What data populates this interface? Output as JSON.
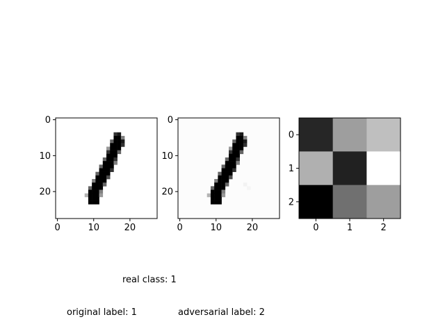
{
  "chart_data": [
    {
      "type": "heatmap",
      "grid": [
        28,
        28
      ],
      "xticks": [
        "0",
        "10",
        "20"
      ],
      "yticks": [
        "0",
        "10",
        "20"
      ],
      "tick_values": [
        0,
        10,
        20
      ],
      "ink_cells": [
        [
          4,
          16,
          0.8
        ],
        [
          4,
          17,
          0.9
        ],
        [
          5,
          16,
          1
        ],
        [
          5,
          17,
          1
        ],
        [
          5,
          18,
          0.5
        ],
        [
          6,
          15,
          0.6
        ],
        [
          6,
          16,
          1
        ],
        [
          6,
          17,
          1
        ],
        [
          6,
          18,
          0.9
        ],
        [
          7,
          15,
          1
        ],
        [
          7,
          16,
          1
        ],
        [
          7,
          17,
          1
        ],
        [
          7,
          18,
          0.8
        ],
        [
          8,
          14,
          0.4
        ],
        [
          8,
          15,
          1
        ],
        [
          8,
          16,
          1
        ],
        [
          8,
          17,
          1
        ],
        [
          9,
          14,
          0.8
        ],
        [
          9,
          15,
          1
        ],
        [
          9,
          16,
          1
        ],
        [
          9,
          17,
          0.6
        ],
        [
          10,
          14,
          1
        ],
        [
          10,
          15,
          1
        ],
        [
          10,
          16,
          1
        ],
        [
          11,
          13,
          0.6
        ],
        [
          11,
          14,
          1
        ],
        [
          11,
          15,
          1
        ],
        [
          11,
          16,
          0.8
        ],
        [
          12,
          13,
          1
        ],
        [
          12,
          14,
          1
        ],
        [
          12,
          15,
          1
        ],
        [
          12,
          16,
          0.5
        ],
        [
          13,
          12,
          0.6
        ],
        [
          13,
          13,
          1
        ],
        [
          13,
          14,
          1
        ],
        [
          13,
          15,
          1
        ],
        [
          14,
          12,
          1
        ],
        [
          14,
          13,
          1
        ],
        [
          14,
          14,
          1
        ],
        [
          14,
          15,
          0.8
        ],
        [
          15,
          11,
          0.6
        ],
        [
          15,
          12,
          1
        ],
        [
          15,
          13,
          1
        ],
        [
          15,
          14,
          1
        ],
        [
          16,
          11,
          1
        ],
        [
          16,
          12,
          1
        ],
        [
          16,
          13,
          1
        ],
        [
          16,
          14,
          0.7
        ],
        [
          17,
          10,
          0.5
        ],
        [
          17,
          11,
          1
        ],
        [
          17,
          12,
          1
        ],
        [
          17,
          13,
          1
        ],
        [
          18,
          10,
          1
        ],
        [
          18,
          11,
          1
        ],
        [
          18,
          12,
          1
        ],
        [
          18,
          13,
          0.6
        ],
        [
          19,
          9,
          0.6
        ],
        [
          19,
          10,
          1
        ],
        [
          19,
          11,
          1
        ],
        [
          19,
          12,
          1
        ],
        [
          20,
          9,
          1
        ],
        [
          20,
          10,
          1
        ],
        [
          20,
          11,
          1
        ],
        [
          20,
          12,
          0.5
        ],
        [
          21,
          8,
          0.3
        ],
        [
          21,
          9,
          1
        ],
        [
          21,
          10,
          1
        ],
        [
          21,
          11,
          1
        ],
        [
          21,
          12,
          0.4
        ],
        [
          22,
          9,
          1
        ],
        [
          22,
          10,
          1
        ],
        [
          22,
          11,
          1
        ],
        [
          23,
          9,
          1
        ],
        [
          23,
          10,
          1
        ],
        [
          23,
          11,
          1
        ]
      ]
    },
    {
      "type": "heatmap",
      "grid": [
        28,
        28
      ],
      "xticks": [
        "0",
        "10",
        "20"
      ],
      "yticks": [
        "0",
        "10",
        "20"
      ],
      "tick_values": [
        0,
        10,
        20
      ],
      "background_level": 0.01,
      "note_cells": [
        [
          18,
          18,
          0.05
        ],
        [
          19,
          19,
          0.04
        ]
      ]
    },
    {
      "type": "heatmap",
      "grid": [
        3,
        3
      ],
      "xticks": [
        "0",
        "1",
        "2"
      ],
      "yticks": [
        "0",
        "1",
        "2"
      ],
      "tick_values": [
        0,
        1,
        2
      ],
      "values": [
        [
          0.85,
          0.38,
          0.25
        ],
        [
          0.31,
          0.87,
          0.0
        ],
        [
          1.0,
          0.56,
          0.38
        ]
      ]
    }
  ],
  "captions": {
    "real_class": "real class: 1",
    "original_label": "original label: 1",
    "adversarial_label": "adversarial label: 2"
  }
}
